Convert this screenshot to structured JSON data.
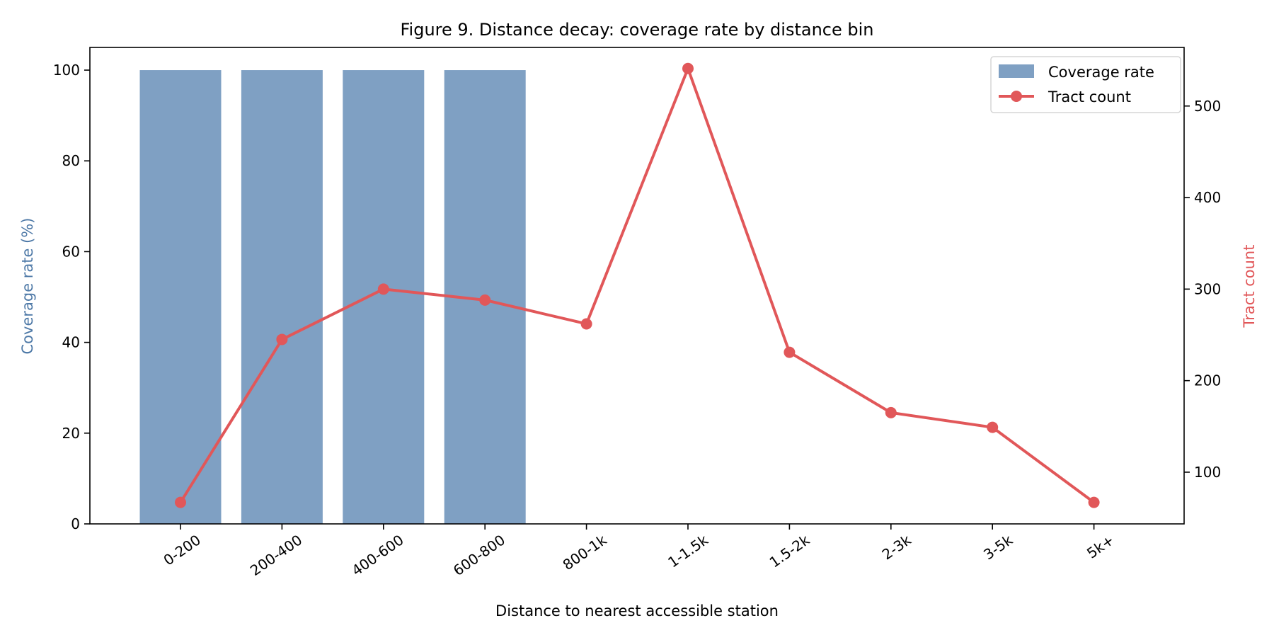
{
  "chart_data": {
    "type": "bar+line",
    "title": "Figure 9. Distance decay: coverage rate by distance bin",
    "xlabel": "Distance to nearest accessible station",
    "ylabel": "Coverage rate (%)",
    "y2label": "Tract count",
    "categories": [
      "0-200",
      "200-400",
      "400-600",
      "600-800",
      "800-1k",
      "1-1.5k",
      "1.5-2k",
      "2-3k",
      "3-5k",
      "5k+"
    ],
    "series": [
      {
        "name": "Coverage rate",
        "type": "bar",
        "axis": "left",
        "color": "#7fa0c3",
        "values": [
          100,
          100,
          100,
          100,
          0,
          0,
          0,
          0,
          0,
          0
        ]
      },
      {
        "name": "Tract count",
        "type": "line",
        "axis": "right",
        "color": "#e15759",
        "marker": "circle",
        "values": [
          67,
          245,
          300,
          288,
          262,
          541,
          231,
          165,
          149,
          67
        ]
      }
    ],
    "ylim": [
      0,
      105
    ],
    "y2lim": [
      43.5,
      564
    ],
    "yticks": [
      0,
      20,
      40,
      60,
      80,
      100
    ],
    "y2ticks": [
      100,
      200,
      300,
      400,
      500
    ],
    "ylabel_color": "#4e79a7",
    "y2label_color": "#e15759",
    "grid": false,
    "legend_position": "upper right",
    "xtick_rotation": 35
  }
}
